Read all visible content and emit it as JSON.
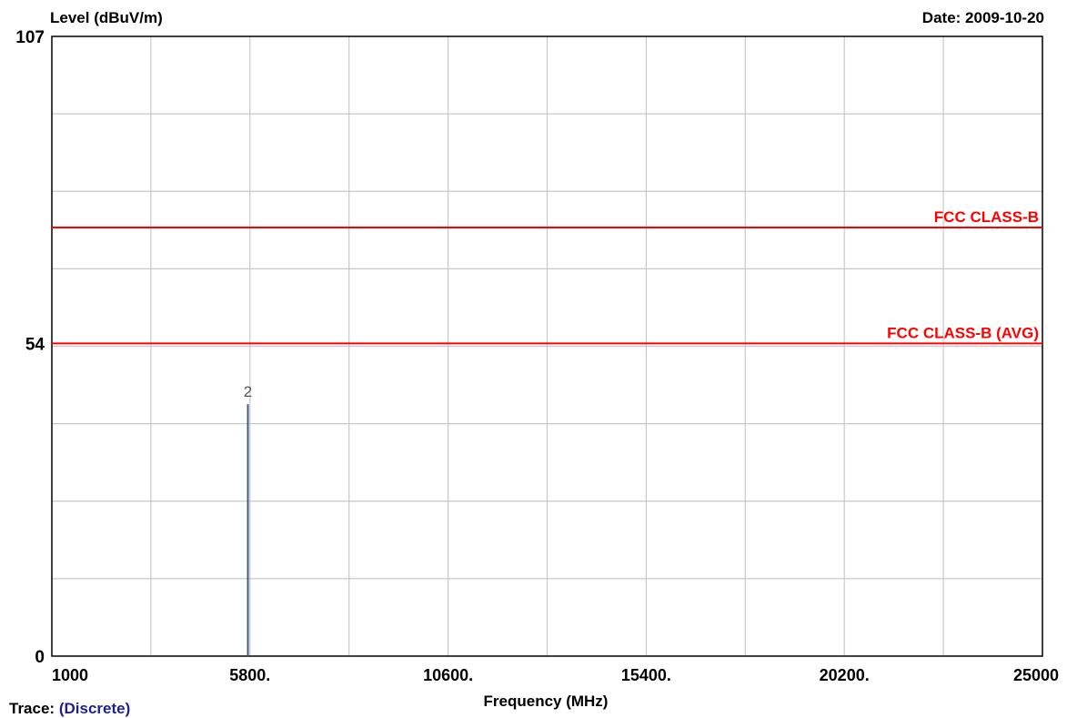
{
  "header": {
    "ylabel": "Level (dBuV/m)",
    "date": "Date: 2009-10-20"
  },
  "footer": {
    "trace_label": "Trace:",
    "trace_value": "(Discrete)"
  },
  "chart_data": {
    "type": "bar",
    "xlabel": "Frequency (MHz)",
    "ylabel": "Level (dBuV/m)",
    "xlim": [
      1000,
      25000
    ],
    "ylim": [
      0,
      107
    ],
    "x_tick_labels": [
      {
        "value": 1000,
        "label": "1000"
      },
      {
        "value": 5800,
        "label": "5800."
      },
      {
        "value": 10600,
        "label": "10600."
      },
      {
        "value": 15400,
        "label": "15400."
      },
      {
        "value": 20200,
        "label": "20200."
      },
      {
        "value": 25000,
        "label": "25000"
      }
    ],
    "y_tick_labels": [
      {
        "value": 107,
        "label": "107"
      },
      {
        "value": 54,
        "label": "54"
      },
      {
        "value": 0,
        "label": "0"
      }
    ],
    "x_grid_step": 2400,
    "y_grid_step": 13.375,
    "grid": true,
    "limit_lines": [
      {
        "name": "FCC CLASS-B",
        "value": 74,
        "color": "#ff0000"
      },
      {
        "name": "FCC CLASS-B (AVG)",
        "value": 54,
        "color": "#ff0000"
      }
    ],
    "markers": [
      {
        "label": "2",
        "x": 5750,
        "y": 43.5,
        "color": "#3a5a8a"
      }
    ]
  }
}
